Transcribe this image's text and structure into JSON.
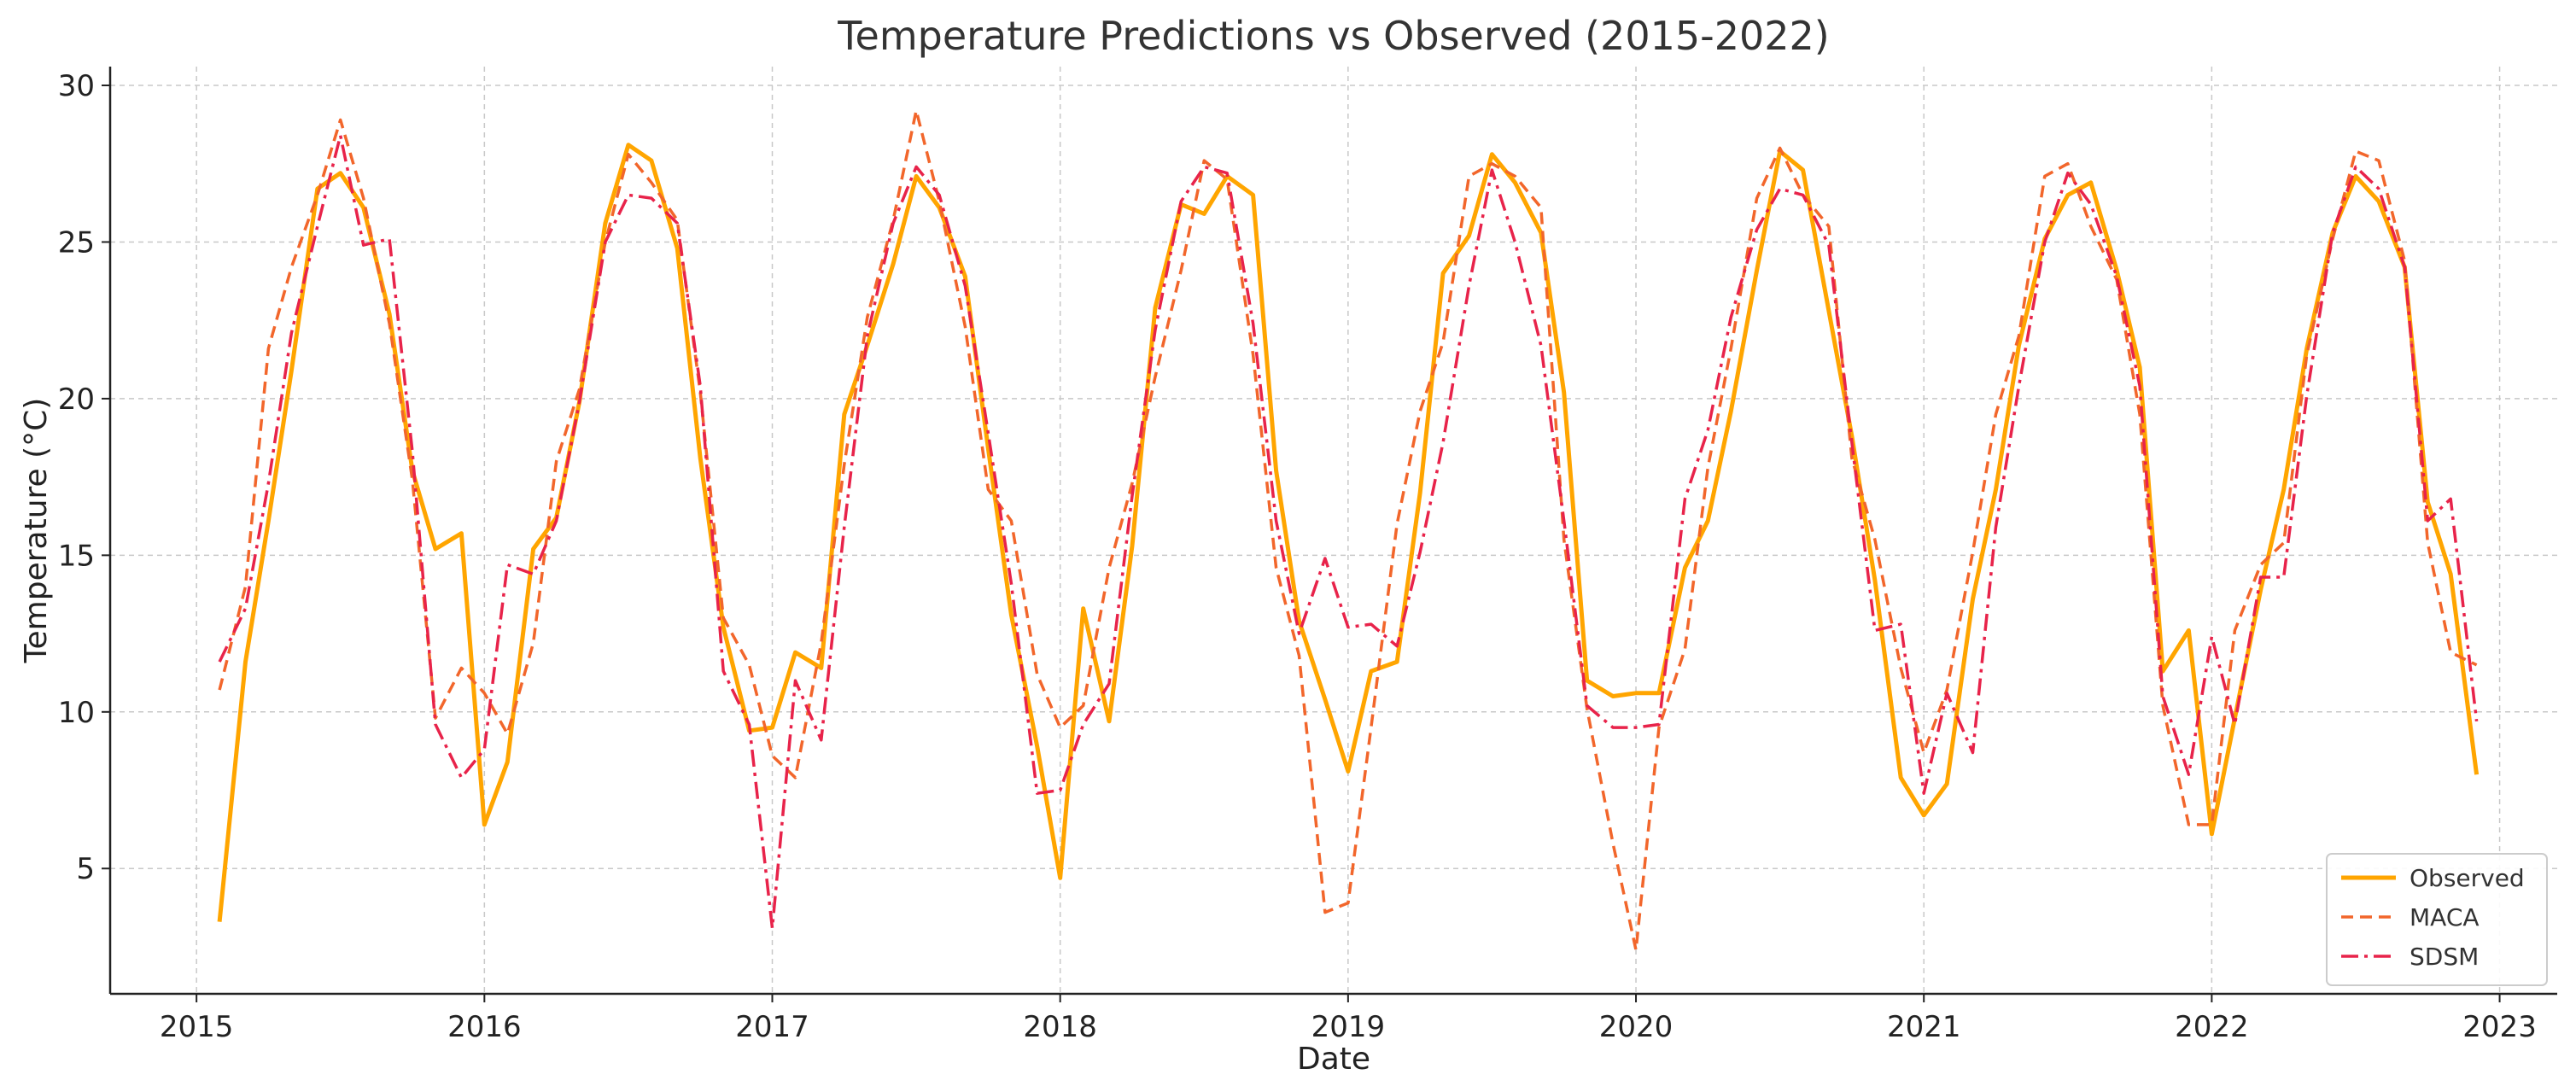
{
  "chart_data": {
    "type": "line",
    "title": "Temperature Predictions vs Observed (2015-2022)",
    "xlabel": "Date",
    "ylabel": "Temperature (°C)",
    "xlim": [
      2014.7,
      2023.2
    ],
    "ylim": [
      1.0,
      30.6
    ],
    "grid": true,
    "legend_position": "bottom-right",
    "x_ticks": [
      2015,
      2016,
      2017,
      2018,
      2019,
      2020,
      2021,
      2022,
      2023
    ],
    "x_tick_labels": [
      "2015",
      "2016",
      "2017",
      "2018",
      "2019",
      "2020",
      "2021",
      "2022",
      "2023"
    ],
    "y_ticks": [
      5,
      10,
      15,
      20,
      25,
      30
    ],
    "y_tick_labels": [
      "5",
      "10",
      "15",
      "20",
      "25",
      "30"
    ],
    "x": [
      2015.08,
      2015.17,
      2015.25,
      2015.33,
      2015.42,
      2015.5,
      2015.58,
      2015.67,
      2015.75,
      2015.83,
      2015.92,
      2016.0,
      2016.08,
      2016.17,
      2016.25,
      2016.33,
      2016.42,
      2016.5,
      2016.58,
      2016.67,
      2016.75,
      2016.83,
      2016.92,
      2017.0,
      2017.08,
      2017.17,
      2017.25,
      2017.33,
      2017.42,
      2017.5,
      2017.58,
      2017.67,
      2017.75,
      2017.83,
      2017.92,
      2018.0,
      2018.08,
      2018.17,
      2018.25,
      2018.33,
      2018.42,
      2018.5,
      2018.58,
      2018.67,
      2018.75,
      2018.83,
      2018.92,
      2019.0,
      2019.08,
      2019.17,
      2019.25,
      2019.33,
      2019.42,
      2019.5,
      2019.58,
      2019.67,
      2019.75,
      2019.83,
      2019.92,
      2020.0,
      2020.08,
      2020.17,
      2020.25,
      2020.33,
      2020.42,
      2020.5,
      2020.58,
      2020.67,
      2020.75,
      2020.83,
      2020.92,
      2021.0,
      2021.08,
      2021.17,
      2021.25,
      2021.33,
      2021.42,
      2021.5,
      2021.58,
      2021.67,
      2021.75,
      2021.83,
      2021.92,
      2022.0,
      2022.08,
      2022.17,
      2022.25,
      2022.33,
      2022.42,
      2022.5,
      2022.58,
      2022.67,
      2022.75,
      2022.83,
      2022.92
    ],
    "series": [
      {
        "name": "Observed",
        "color": "#FFA500",
        "dash": "solid",
        "values": [
          3.3,
          11.6,
          16.1,
          20.9,
          26.7,
          27.2,
          26.1,
          22.7,
          17.7,
          15.2,
          15.7,
          6.4,
          8.4,
          15.2,
          16.2,
          19.9,
          25.6,
          28.1,
          27.6,
          24.8,
          18.1,
          12.7,
          9.4,
          9.5,
          11.9,
          11.4,
          19.5,
          21.7,
          24.3,
          27.1,
          26.1,
          23.9,
          18.4,
          13.1,
          8.9,
          4.7,
          13.3,
          9.7,
          15.3,
          22.9,
          26.2,
          25.9,
          27.1,
          26.5,
          17.7,
          12.9,
          10.4,
          8.1,
          11.3,
          11.6,
          17.0,
          24.0,
          25.2,
          27.8,
          26.9,
          25.3,
          20.2,
          11.0,
          10.5,
          10.6,
          10.6,
          14.6,
          16.1,
          19.6,
          24.1,
          27.9,
          27.3,
          22.8,
          18.8,
          14.2,
          7.9,
          6.7,
          7.7,
          13.6,
          17.1,
          21.7,
          25.1,
          26.5,
          26.9,
          24.1,
          21.0,
          11.3,
          12.6,
          6.1,
          9.8,
          13.9,
          17.1,
          21.6,
          25.3,
          27.1,
          26.3,
          24.2,
          16.7,
          14.4,
          8.0
        ]
      },
      {
        "name": "MACA",
        "color": "#F2662B",
        "dash": "dashed",
        "values": [
          10.7,
          14.0,
          21.6,
          24.2,
          26.5,
          28.9,
          26.4,
          22.4,
          17.4,
          9.8,
          11.4,
          10.6,
          9.3,
          12.2,
          18.0,
          20.3,
          25.0,
          27.8,
          26.9,
          25.7,
          20.2,
          13.0,
          11.5,
          8.6,
          7.9,
          12.2,
          17.9,
          22.6,
          25.7,
          29.2,
          26.3,
          22.3,
          17.1,
          16.1,
          11.2,
          9.5,
          10.2,
          14.6,
          17.3,
          20.7,
          24.1,
          27.6,
          27.0,
          21.4,
          14.6,
          11.8,
          3.6,
          3.9,
          9.5,
          16.0,
          19.6,
          21.8,
          27.1,
          27.5,
          27.1,
          26.1,
          15.5,
          10.1,
          5.8,
          2.4,
          9.5,
          12.0,
          17.8,
          21.6,
          26.4,
          28.0,
          26.5,
          25.5,
          18.1,
          15.5,
          11.4,
          8.7,
          10.7,
          15.1,
          19.5,
          22.0,
          27.1,
          27.5,
          25.5,
          23.8,
          19.5,
          10.2,
          6.4,
          6.4,
          12.6,
          14.7,
          15.4,
          21.4,
          25.1,
          27.9,
          27.6,
          24.4,
          15.4,
          11.9,
          11.5
        ]
      },
      {
        "name": "SDSM",
        "color": "#E8234A",
        "dash": "dashdot",
        "values": [
          11.6,
          13.3,
          17.3,
          22.1,
          25.5,
          28.4,
          24.9,
          25.1,
          18.3,
          9.6,
          7.9,
          8.8,
          14.7,
          14.4,
          16.1,
          19.9,
          25.0,
          26.5,
          26.4,
          25.6,
          20.4,
          11.3,
          9.6,
          3.1,
          11.0,
          9.1,
          15.9,
          22.0,
          25.6,
          27.4,
          26.5,
          23.6,
          18.9,
          14.1,
          7.4,
          7.5,
          9.6,
          10.9,
          16.9,
          22.2,
          26.3,
          27.4,
          27.2,
          22.4,
          16.1,
          12.5,
          14.9,
          12.7,
          12.8,
          12.1,
          15.1,
          18.6,
          23.6,
          27.3,
          25.0,
          21.7,
          16.1,
          10.2,
          9.5,
          9.5,
          9.6,
          16.8,
          19.0,
          22.6,
          25.4,
          26.7,
          26.5,
          24.9,
          18.6,
          12.6,
          12.8,
          7.4,
          10.6,
          8.7,
          15.9,
          20.4,
          25.0,
          27.2,
          26.2,
          23.9,
          20.4,
          10.5,
          8.0,
          12.4,
          9.6,
          14.3,
          14.3,
          20.1,
          25.3,
          27.4,
          26.7,
          24.2,
          16.1,
          16.8,
          9.7
        ]
      }
    ]
  }
}
